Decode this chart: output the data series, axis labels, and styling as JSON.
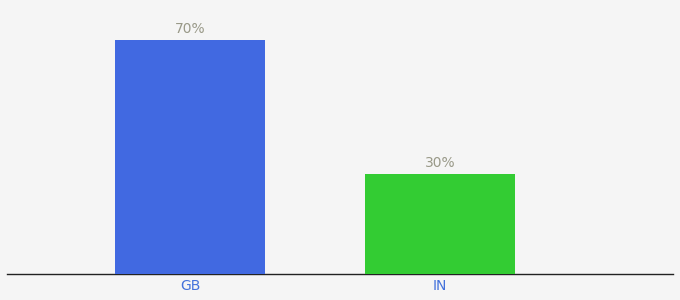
{
  "categories": [
    "GB",
    "IN"
  ],
  "values": [
    70,
    30
  ],
  "bar_colors": [
    "#4169e1",
    "#33cc33"
  ],
  "label_texts": [
    "70%",
    "30%"
  ],
  "label_color": "#999988",
  "tick_color": "#4472db",
  "background_color": "#f5f5f5",
  "ylim": [
    0,
    80
  ],
  "bar_width": 0.18,
  "label_fontsize": 10,
  "tick_fontsize": 10,
  "x_positions": [
    0.32,
    0.62
  ]
}
